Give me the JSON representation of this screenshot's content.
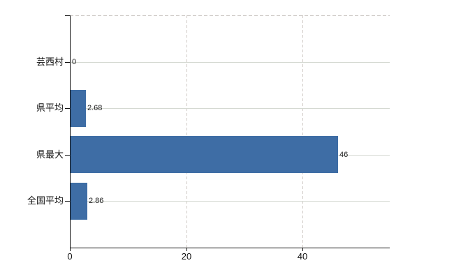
{
  "chart_data": {
    "type": "bar",
    "orientation": "horizontal",
    "title": "",
    "xlabel": "",
    "ylabel": "",
    "categories": [
      "芸西村",
      "県平均",
      "県最大",
      "全国平均"
    ],
    "values": [
      0,
      2.68,
      46,
      2.86
    ],
    "value_labels": [
      "0",
      "2.68",
      "46",
      "2.86"
    ],
    "xlim": [
      0,
      55
    ],
    "xticks": [
      0,
      20,
      40
    ],
    "xtick_labels": [
      "0",
      "20",
      "40"
    ],
    "grid": true,
    "legend": false,
    "colors": {
      "bar": "#3E6DA5",
      "background": "#FFFFFF",
      "axis": "#111111",
      "h_grid": "#D5D9D2",
      "v_grid": "#D0CBC7",
      "top_border": "#C9C5C1",
      "text": "#111111"
    }
  }
}
